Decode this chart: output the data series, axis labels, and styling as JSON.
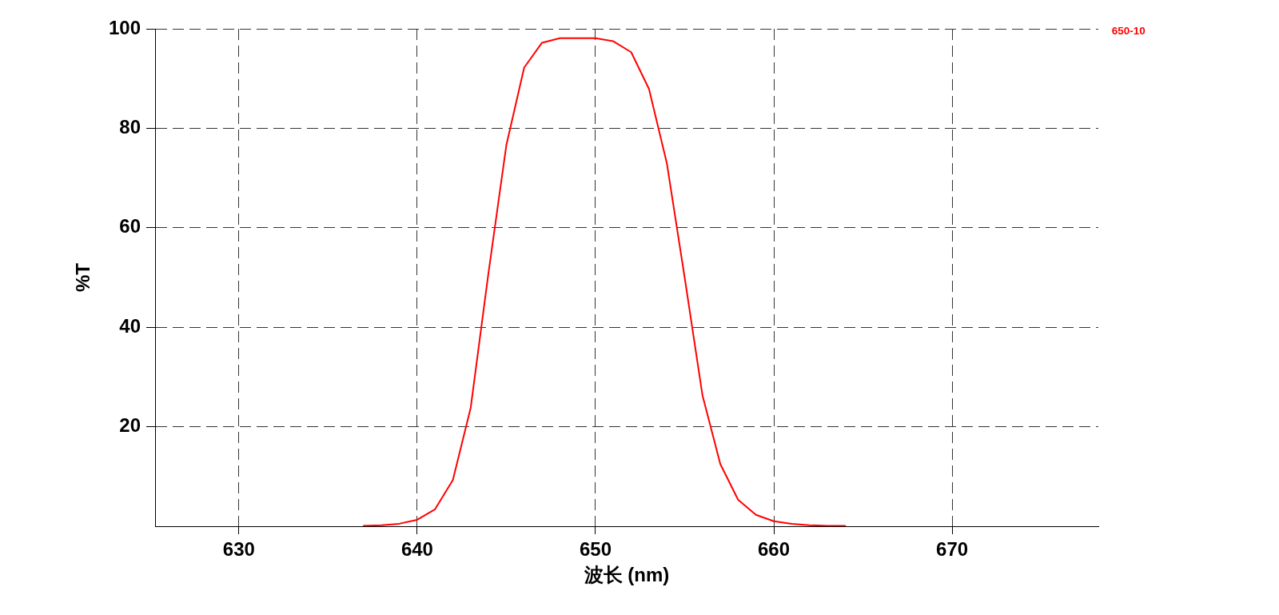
{
  "chart_data": {
    "type": "line",
    "xlabel": "波长 (nm)",
    "ylabel": "%T",
    "x": [
      637,
      638,
      639,
      640,
      641,
      642,
      643,
      644,
      645,
      646,
      647,
      648,
      649,
      650,
      651,
      652,
      653,
      654,
      655,
      656,
      657,
      658,
      659,
      660,
      661,
      662,
      663,
      664
    ],
    "series": [
      {
        "name": "650-10",
        "color": "#ff0000",
        "values": [
          0.1,
          0.2,
          0.5,
          1.3,
          3.4,
          9.3,
          23.8,
          51,
          76.6,
          92.2,
          97.2,
          98.1,
          98.1,
          98.1,
          97.5,
          95.3,
          87.9,
          73,
          50,
          26.3,
          12.5,
          5.3,
          2.3,
          1,
          0.5,
          0.2,
          0.1,
          0.1
        ]
      }
    ],
    "xlim": [
      625.3,
      678.2
    ],
    "xticks": [
      630,
      640,
      650,
      660,
      670
    ],
    "ylim": [
      0,
      100
    ],
    "yticks": [
      20,
      40,
      60,
      80,
      100
    ],
    "grid": true,
    "legend": "top right",
    "marker": "none"
  }
}
